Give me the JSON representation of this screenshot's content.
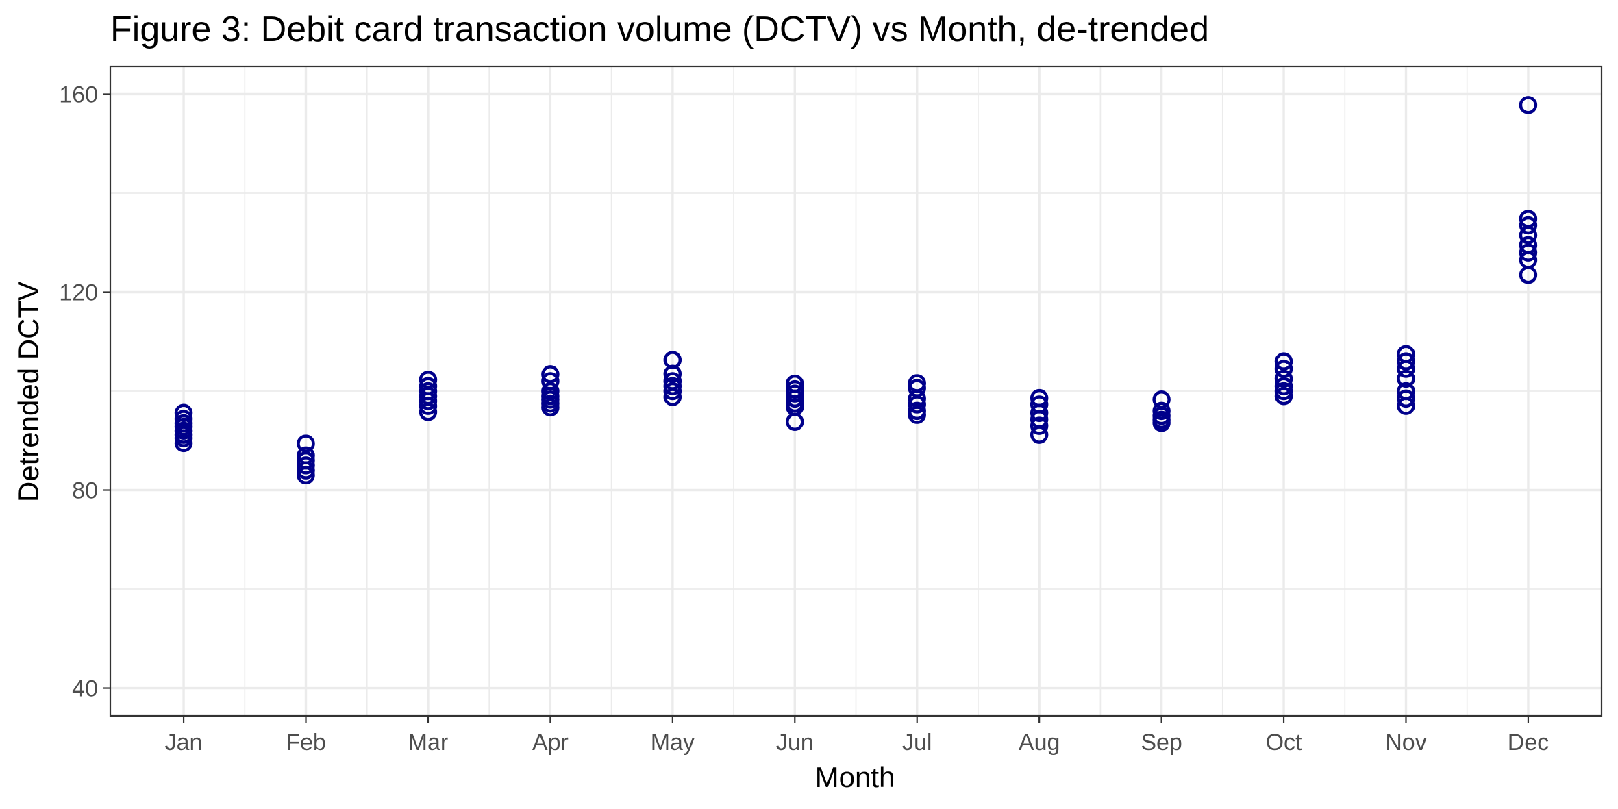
{
  "chart_data": {
    "type": "scatter",
    "title": "Figure 3: Debit card transaction volume (DCTV) vs Month, de-trended",
    "xlabel": "Month",
    "ylabel": "Detrended DCTV",
    "categories": [
      "Jan",
      "Feb",
      "Mar",
      "Apr",
      "May",
      "Jun",
      "Jul",
      "Aug",
      "Sep",
      "Oct",
      "Nov",
      "Dec"
    ],
    "ylim": [
      34.4,
      165.6
    ],
    "yticks": [
      40,
      80,
      120,
      160
    ],
    "yticks_labels": [
      "40",
      "80",
      "120",
      "160"
    ],
    "grid": true,
    "legend": "none",
    "point_color": "#00008b",
    "series": [
      {
        "points": [
          {
            "x": "Jan",
            "y": 95.6
          },
          {
            "x": "Jan",
            "y": 94.4
          },
          {
            "x": "Jan",
            "y": 93.5
          },
          {
            "x": "Jan",
            "y": 92.8
          },
          {
            "x": "Jan",
            "y": 92.0
          },
          {
            "x": "Jan",
            "y": 91.2
          },
          {
            "x": "Jan",
            "y": 90.5
          },
          {
            "x": "Jan",
            "y": 89.5
          },
          {
            "x": "Feb",
            "y": 89.4
          },
          {
            "x": "Feb",
            "y": 87.0
          },
          {
            "x": "Feb",
            "y": 86.0
          },
          {
            "x": "Feb",
            "y": 85.0
          },
          {
            "x": "Feb",
            "y": 84.0
          },
          {
            "x": "Feb",
            "y": 83.0
          },
          {
            "x": "Mar",
            "y": 102.3
          },
          {
            "x": "Mar",
            "y": 101.0
          },
          {
            "x": "Mar",
            "y": 100.0
          },
          {
            "x": "Mar",
            "y": 99.0
          },
          {
            "x": "Mar",
            "y": 98.0
          },
          {
            "x": "Mar",
            "y": 97.0
          },
          {
            "x": "Mar",
            "y": 95.8
          },
          {
            "x": "Apr",
            "y": 103.4
          },
          {
            "x": "Apr",
            "y": 102.0
          },
          {
            "x": "Apr",
            "y": 100.0
          },
          {
            "x": "Apr",
            "y": 99.0
          },
          {
            "x": "Apr",
            "y": 98.3
          },
          {
            "x": "Apr",
            "y": 97.5
          },
          {
            "x": "Apr",
            "y": 96.7
          },
          {
            "x": "May",
            "y": 106.3
          },
          {
            "x": "May",
            "y": 103.5
          },
          {
            "x": "May",
            "y": 102.0
          },
          {
            "x": "May",
            "y": 101.0
          },
          {
            "x": "May",
            "y": 100.0
          },
          {
            "x": "May",
            "y": 98.8
          },
          {
            "x": "Jun",
            "y": 101.5
          },
          {
            "x": "Jun",
            "y": 100.4
          },
          {
            "x": "Jun",
            "y": 99.5
          },
          {
            "x": "Jun",
            "y": 98.5
          },
          {
            "x": "Jun",
            "y": 97.5
          },
          {
            "x": "Jun",
            "y": 96.8
          },
          {
            "x": "Jun",
            "y": 93.8
          },
          {
            "x": "Jul",
            "y": 101.6
          },
          {
            "x": "Jul",
            "y": 100.6
          },
          {
            "x": "Jul",
            "y": 98.5
          },
          {
            "x": "Jul",
            "y": 97.3
          },
          {
            "x": "Jul",
            "y": 96.0
          },
          {
            "x": "Jul",
            "y": 95.2
          },
          {
            "x": "Aug",
            "y": 98.6
          },
          {
            "x": "Aug",
            "y": 97.3
          },
          {
            "x": "Aug",
            "y": 95.6
          },
          {
            "x": "Aug",
            "y": 94.3
          },
          {
            "x": "Aug",
            "y": 93.0
          },
          {
            "x": "Aug",
            "y": 91.2
          },
          {
            "x": "Sep",
            "y": 98.3
          },
          {
            "x": "Sep",
            "y": 96.0
          },
          {
            "x": "Sep",
            "y": 95.0
          },
          {
            "x": "Sep",
            "y": 94.2
          },
          {
            "x": "Sep",
            "y": 93.6
          },
          {
            "x": "Oct",
            "y": 106.0
          },
          {
            "x": "Oct",
            "y": 104.5
          },
          {
            "x": "Oct",
            "y": 102.5
          },
          {
            "x": "Oct",
            "y": 101.0
          },
          {
            "x": "Oct",
            "y": 100.0
          },
          {
            "x": "Oct",
            "y": 99.0
          },
          {
            "x": "Nov",
            "y": 107.5
          },
          {
            "x": "Nov",
            "y": 106.0
          },
          {
            "x": "Nov",
            "y": 104.5
          },
          {
            "x": "Nov",
            "y": 102.5
          },
          {
            "x": "Nov",
            "y": 100.0
          },
          {
            "x": "Nov",
            "y": 98.5
          },
          {
            "x": "Nov",
            "y": 97.0
          },
          {
            "x": "Dec",
            "y": 157.8
          },
          {
            "x": "Dec",
            "y": 134.8
          },
          {
            "x": "Dec",
            "y": 133.5
          },
          {
            "x": "Dec",
            "y": 131.5
          },
          {
            "x": "Dec",
            "y": 129.5
          },
          {
            "x": "Dec",
            "y": 128.0
          },
          {
            "x": "Dec",
            "y": 126.5
          },
          {
            "x": "Dec",
            "y": 123.5
          }
        ]
      }
    ]
  }
}
